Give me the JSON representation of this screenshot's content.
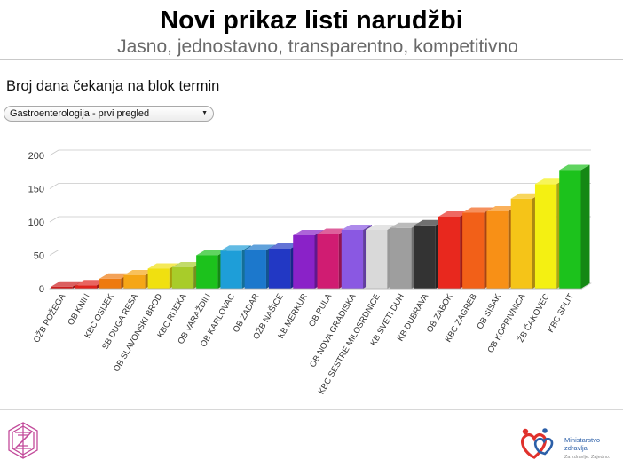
{
  "header": {
    "title": "Novi prikaz listi narudžbi",
    "subtitle": "Jasno, jednostavno, transparentno, kompetitivno"
  },
  "section": {
    "heading": "Broj dana čekanja na blok termin"
  },
  "dropdown": {
    "selected": "Gastroenterologija - prvi pregled"
  },
  "footer": {
    "ministry_name": "Ministarstvo zdravlja",
    "ministry_slogan": "Za zdravlje. Zajedno.",
    "logo_left_icon": "z-monogram-logo-icon",
    "logo_right_icon": "hearts-people-logo-icon"
  },
  "chart_data": {
    "type": "bar",
    "style": "3d",
    "categories": [
      "OŽB POŽEGA",
      "OB KNIN",
      "KBC OSIJEK",
      "SB DUGA RESA",
      "OB SLAVONSKI BROD",
      "KBC RIJEKA",
      "OB VARAŽDIN",
      "OB KARLOVAC",
      "OB ZADAR",
      "OŽB NAŠICE",
      "KB MERKUR",
      "OB PULA",
      "OB NOVA GRADIŠKA",
      "KBC SESTRE MILOSRDNICE",
      "KB SVETI DUH",
      "KB DUBRAVA",
      "OB ZABOK",
      "KBC ZAGREB",
      "OB SISAK",
      "OB KOPRIVNICA",
      "ŽB ČAKOVEC",
      "KBC SPLIT"
    ],
    "values": [
      3,
      5,
      15,
      20,
      30,
      32,
      50,
      57,
      58,
      60,
      80,
      82,
      88,
      88,
      91,
      95,
      108,
      114,
      116,
      135,
      157,
      178
    ],
    "colors": [
      "#cc1c1c",
      "#e0231c",
      "#ee7a10",
      "#f5a616",
      "#f0e010",
      "#a8cc2a",
      "#1cc21c",
      "#1e9ed8",
      "#1c78cc",
      "#2238c4",
      "#8a22c8",
      "#d01c72",
      "#8a58e2",
      "#d9d9d9",
      "#9e9e9e",
      "#333333",
      "#e8281e",
      "#f26018",
      "#f89016",
      "#f5c418",
      "#f4f012",
      "#1cc21c"
    ],
    "yticks": [
      0,
      50,
      100,
      150,
      200
    ],
    "ylim": [
      0,
      200
    ],
    "grid": true,
    "legend": "none"
  }
}
